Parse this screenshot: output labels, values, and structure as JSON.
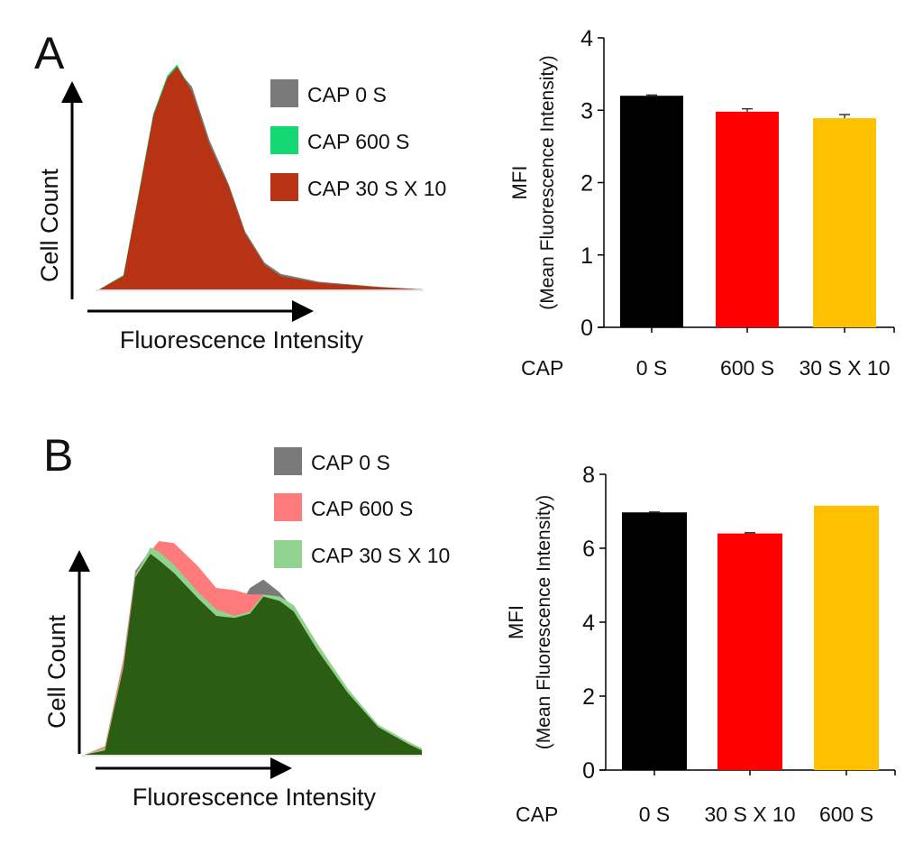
{
  "chart_data": [
    {
      "panel": "A",
      "type": "area",
      "title": "A",
      "xlabel": "Fluorescence Intensity",
      "ylabel": "Cell Count",
      "x": [
        0,
        7.5,
        12,
        16.7,
        21,
        24,
        28.6,
        34,
        40,
        45,
        51,
        56,
        67.5,
        86,
        100
      ],
      "series": [
        {
          "name": "CAP 0 S",
          "color": "#7a7a7a",
          "values": [
            0,
            0.05,
            0.4,
            0.78,
            0.96,
            0.99,
            0.91,
            0.67,
            0.47,
            0.26,
            0.12,
            0.07,
            0.035,
            0.012,
            0
          ]
        },
        {
          "name": "CAP 600 S",
          "color": "#14d872",
          "values": [
            0,
            0.065,
            0.42,
            0.79,
            0.96,
            1.01,
            0.89,
            0.65,
            0.46,
            0.25,
            0.11,
            0.06,
            0.03,
            0.01,
            0
          ]
        },
        {
          "name": "CAP 30 S X 10",
          "color": "#b83214",
          "values": [
            0,
            0.06,
            0.41,
            0.78,
            0.95,
            1.0,
            0.89,
            0.65,
            0.46,
            0.25,
            0.11,
            0.06,
            0.03,
            0.01,
            0
          ]
        }
      ],
      "overlap_color": "#b83214"
    },
    {
      "panel": "A",
      "type": "bar",
      "categories_label": "CAP",
      "categories": [
        "0 S",
        "600 S",
        "30 S X 10"
      ],
      "values": [
        3.2,
        2.98,
        2.89
      ],
      "errors": [
        0.01,
        0.04,
        0.05
      ],
      "colors": [
        "#000000",
        "#ff0000",
        "#ffc000"
      ],
      "ylabel": "MFI",
      "ylabel2": "(Mean Fluorescence Intensity)",
      "ylim": [
        0,
        4
      ],
      "yticks": [
        "0",
        "1",
        "2",
        "3",
        "4"
      ]
    },
    {
      "panel": "B",
      "type": "area",
      "title": "B",
      "xlabel": "Fluorescence Intensity",
      "ylabel": "Cell Count",
      "x": [
        0,
        6,
        11.5,
        15,
        19.5,
        22,
        26.5,
        33.7,
        39,
        44.5,
        49,
        53,
        57.8,
        62,
        69,
        78,
        87,
        96,
        100
      ],
      "series": [
        {
          "name": "CAP 0 S",
          "color": "#7a7a7a",
          "values": [
            0,
            0.03,
            0.45,
            0.86,
            0.96,
            0.92,
            0.86,
            0.74,
            0.66,
            0.66,
            0.78,
            0.82,
            0.76,
            0.68,
            0.5,
            0.3,
            0.14,
            0.06,
            0.03
          ]
        },
        {
          "name": "CAP 600 S",
          "color": "#ff7a7a",
          "values": [
            0,
            0.04,
            0.45,
            0.85,
            0.95,
            1.0,
            0.99,
            0.88,
            0.78,
            0.77,
            0.75,
            0.75,
            0.73,
            0.68,
            0.5,
            0.3,
            0.14,
            0.06,
            0.03
          ]
        },
        {
          "name": "CAP 30 S X 10",
          "color": "#8fd38f",
          "values": [
            0,
            0.03,
            0.42,
            0.84,
            0.97,
            0.95,
            0.89,
            0.76,
            0.68,
            0.65,
            0.67,
            0.75,
            0.74,
            0.7,
            0.52,
            0.31,
            0.14,
            0.06,
            0.03
          ]
        }
      ],
      "overlap_color": "#2b5e12"
    },
    {
      "panel": "B",
      "type": "bar",
      "categories_label": "CAP",
      "categories": [
        "0 S",
        "30 S X 10",
        "600 S"
      ],
      "values": [
        6.97,
        6.4,
        7.15
      ],
      "errors": [
        0.01,
        0.02,
        0.0
      ],
      "colors": [
        "#000000",
        "#ff0000",
        "#ffc000"
      ],
      "ylabel": "MFI",
      "ylabel2": "(Mean Fluorescence Intensity)",
      "ylim": [
        0,
        8
      ],
      "yticks": [
        "0",
        "2",
        "4",
        "6",
        "8"
      ]
    }
  ]
}
